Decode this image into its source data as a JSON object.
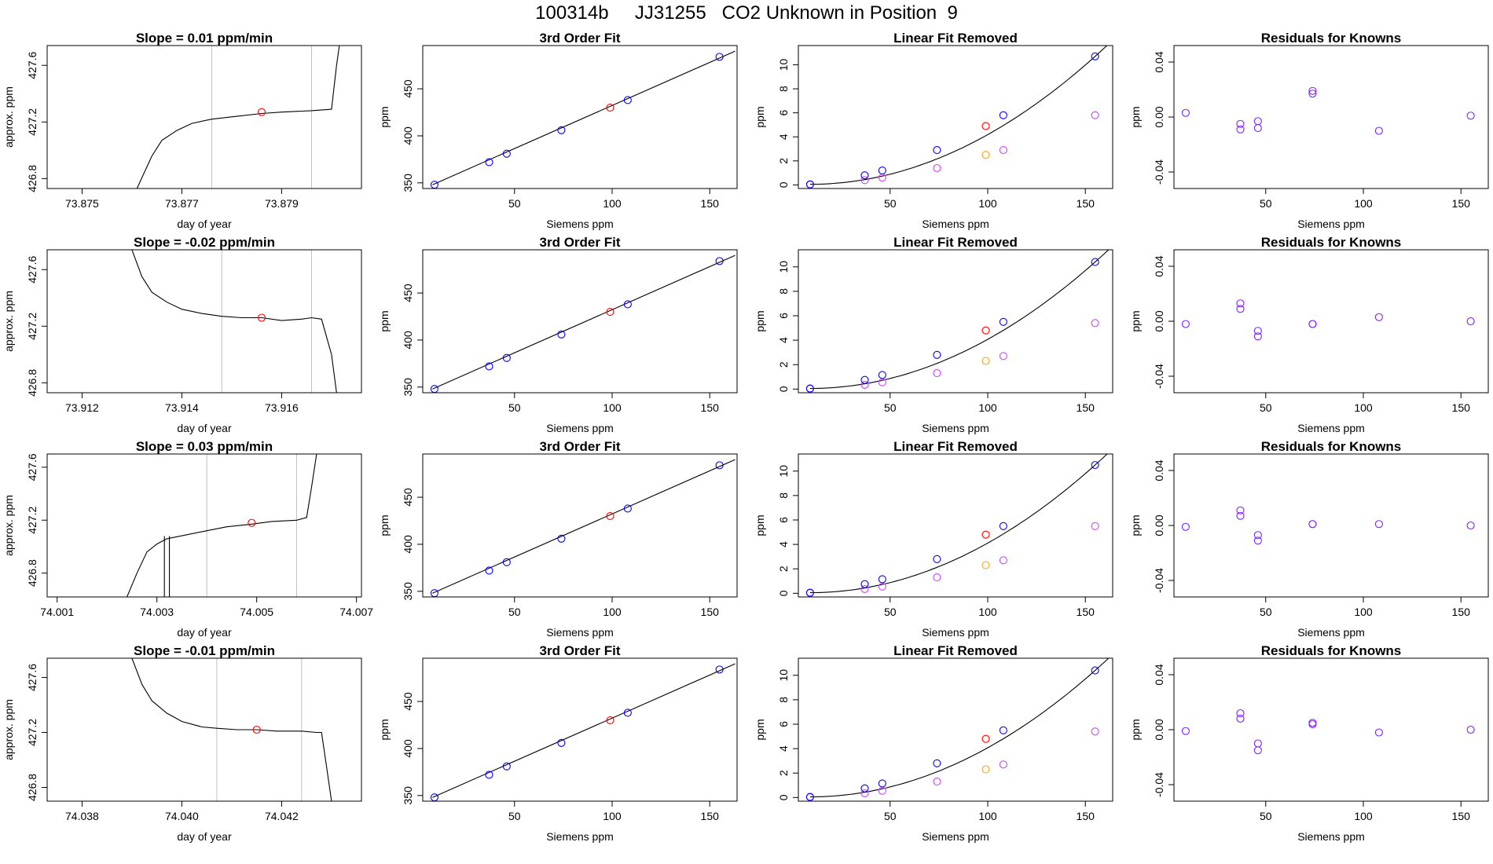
{
  "title": "100314b     JJ31255   CO2 Unknown in Position  9",
  "colors": {
    "trace": "#000000",
    "cursor": "#c0c0c0",
    "unknown": "#ff0000",
    "standards": "#0000ff",
    "raw_points": "#cc44ff",
    "raw_unknown": "#ffa500",
    "residuals": "#7f22ff"
  },
  "chart_data": [
    {
      "type": "line",
      "panel": "time-trace",
      "title": "Slope =  0.01  ppm/min",
      "xlabel": "day of year",
      "ylabel": "approx. ppm",
      "xlim": [
        73.8743,
        73.8806
      ],
      "ylim": [
        426.73,
        427.74
      ],
      "xticks": [
        "73.875",
        "73.877",
        "73.879"
      ],
      "yticks": [
        "426.8",
        "427.2",
        "427.6"
      ],
      "cursors": [
        73.8776,
        73.8796
      ],
      "marker": {
        "x": 73.8786,
        "y": 427.27
      },
      "series": [
        {
          "x": [
            73.8761,
            73.8764,
            73.8766,
            73.8769,
            73.8772,
            73.8776,
            73.8781,
            73.8786,
            73.879,
            73.8796,
            73.88,
            73.8801,
            73.8803
          ],
          "y": [
            426.73,
            426.96,
            427.07,
            427.14,
            427.19,
            427.22,
            427.24,
            427.26,
            427.27,
            427.28,
            427.29,
            427.6,
            428.1
          ]
        }
      ]
    },
    {
      "type": "scatter",
      "panel": "third-order-fit",
      "title": "3rd Order Fit",
      "xlabel": "Siemens ppm",
      "ylabel": "ppm",
      "xlim": [
        3,
        164
      ],
      "ylim": [
        344,
        496
      ],
      "xticks": [
        "50",
        "100",
        "150"
      ],
      "yticks": [
        "350",
        "400",
        "450"
      ],
      "fit_line": {
        "x": [
          8,
          163
        ],
        "y": [
          348,
          490
        ]
      },
      "standards": {
        "x": [
          9,
          37,
          46,
          74,
          108,
          155
        ],
        "y": [
          348,
          372,
          381,
          406,
          438,
          484
        ]
      },
      "unknown": {
        "x": [
          99
        ],
        "y": [
          430
        ]
      }
    },
    {
      "type": "scatter",
      "panel": "linear-fit-removed",
      "title": "Linear Fit Removed",
      "xlabel": "Siemens ppm",
      "ylabel": "ppm",
      "xlim": [
        3,
        164
      ],
      "ylim": [
        -0.3,
        11.6
      ],
      "xticks": [
        "50",
        "100",
        "150"
      ],
      "yticks": [
        "0",
        "2",
        "4",
        "6",
        "8",
        "10"
      ],
      "standards": {
        "x": [
          9,
          37,
          46,
          74,
          108,
          155
        ],
        "y": [
          0.05,
          0.8,
          1.2,
          2.9,
          5.8,
          10.7
        ]
      },
      "raw": {
        "x": [
          9,
          37,
          46,
          74,
          108,
          155
        ],
        "y": [
          0.02,
          0.4,
          0.6,
          1.4,
          2.9,
          5.8
        ]
      },
      "unknown": {
        "x": [
          99
        ],
        "y": [
          4.9
        ]
      },
      "raw_unknown": {
        "x": [
          99
        ],
        "y": [
          2.5
        ]
      }
    },
    {
      "type": "scatter",
      "panel": "residuals",
      "title": "Residuals for Knowns",
      "xlabel": "Siemens ppm",
      "ylabel": "ppm",
      "xlim": [
        3,
        164
      ],
      "ylim": [
        -0.052,
        0.052
      ],
      "xticks": [
        "50",
        "100",
        "150"
      ],
      "yticks": [
        "-0.04",
        "0.00",
        "0.04"
      ],
      "points": {
        "x": [
          9,
          37,
          37,
          46,
          46,
          74,
          74,
          108,
          155
        ],
        "y": [
          0.003,
          -0.005,
          -0.009,
          -0.003,
          -0.008,
          0.019,
          0.017,
          -0.01,
          0.001
        ]
      }
    },
    {
      "type": "line",
      "panel": "time-trace",
      "title": "Slope =  -0.02  ppm/min",
      "xlabel": "day of year",
      "ylabel": "approx. ppm",
      "xlim": [
        73.9113,
        73.9176
      ],
      "ylim": [
        426.73,
        427.74
      ],
      "xticks": [
        "73.912",
        "73.914",
        "73.916"
      ],
      "yticks": [
        "426.8",
        "427.2",
        "427.6"
      ],
      "cursors": [
        73.9148,
        73.9166
      ],
      "marker": {
        "x": 73.9156,
        "y": 427.26
      },
      "series": [
        {
          "x": [
            73.913,
            73.9132,
            73.9134,
            73.9137,
            73.914,
            73.9144,
            73.9148,
            73.9152,
            73.9156,
            73.916,
            73.9164,
            73.9166,
            73.9168,
            73.917,
            73.9171
          ],
          "y": [
            427.74,
            427.55,
            427.44,
            427.37,
            427.32,
            427.29,
            427.27,
            427.26,
            427.26,
            427.24,
            427.25,
            427.26,
            427.25,
            427.0,
            426.73
          ]
        }
      ]
    },
    {
      "type": "scatter",
      "panel": "third-order-fit",
      "title": "3rd Order Fit",
      "xlabel": "Siemens ppm",
      "ylabel": "ppm",
      "xlim": [
        3,
        164
      ],
      "ylim": [
        344,
        496
      ],
      "xticks": [
        "50",
        "100",
        "150"
      ],
      "yticks": [
        "350",
        "400",
        "450"
      ],
      "fit_line": {
        "x": [
          8,
          163
        ],
        "y": [
          348,
          490
        ]
      },
      "standards": {
        "x": [
          9,
          37,
          46,
          74,
          108,
          155
        ],
        "y": [
          348,
          372,
          381,
          406,
          438,
          484
        ]
      },
      "unknown": {
        "x": [
          99
        ],
        "y": [
          430
        ]
      }
    },
    {
      "type": "scatter",
      "panel": "linear-fit-removed",
      "title": "Linear Fit Removed",
      "xlabel": "Siemens ppm",
      "ylabel": "ppm",
      "xlim": [
        3,
        164
      ],
      "ylim": [
        -0.3,
        11.4
      ],
      "xticks": [
        "50",
        "100",
        "150"
      ],
      "yticks": [
        "0",
        "2",
        "4",
        "6",
        "8",
        "10"
      ],
      "standards": {
        "x": [
          9,
          37,
          46,
          74,
          108,
          155
        ],
        "y": [
          0.05,
          0.75,
          1.15,
          2.8,
          5.5,
          10.4
        ]
      },
      "raw": {
        "x": [
          9,
          37,
          46,
          74,
          108,
          155
        ],
        "y": [
          0.02,
          0.35,
          0.55,
          1.3,
          2.7,
          5.4
        ]
      },
      "unknown": {
        "x": [
          99
        ],
        "y": [
          4.8
        ]
      },
      "raw_unknown": {
        "x": [
          99
        ],
        "y": [
          2.3
        ]
      }
    },
    {
      "type": "scatter",
      "panel": "residuals",
      "title": "Residuals for Knowns",
      "xlabel": "Siemens ppm",
      "ylabel": "ppm",
      "xlim": [
        3,
        164
      ],
      "ylim": [
        -0.052,
        0.052
      ],
      "xticks": [
        "50",
        "100",
        "150"
      ],
      "yticks": [
        "-0.04",
        "0.00",
        "0.04"
      ],
      "points": {
        "x": [
          9,
          37,
          37,
          46,
          46,
          74,
          74,
          108,
          155
        ],
        "y": [
          -0.002,
          0.013,
          0.009,
          -0.007,
          -0.011,
          -0.002,
          -0.002,
          0.003,
          0.0
        ]
      }
    },
    {
      "type": "line",
      "panel": "time-trace",
      "title": "Slope =  0.03  ppm/min",
      "xlabel": "day of year",
      "ylabel": "approx. ppm",
      "xlim": [
        74.0008,
        74.0071
      ],
      "ylim": [
        426.62,
        427.7
      ],
      "xticks": [
        "74.001",
        "74.003",
        "74.005",
        "74.007"
      ],
      "yticks": [
        "426.8",
        "427.2",
        "427.6"
      ],
      "cursors": [
        74.004,
        74.0058
      ],
      "marker": {
        "x": 74.0049,
        "y": 427.18
      },
      "series": [
        {
          "x": [
            74.0024,
            74.0026,
            74.0028,
            74.003,
            74.0032,
            74.0036,
            74.004,
            74.0044,
            74.0049,
            74.0053,
            74.0058,
            74.006,
            74.0061,
            74.0062
          ],
          "y": [
            426.62,
            426.8,
            426.96,
            427.02,
            427.06,
            427.09,
            427.12,
            427.15,
            427.17,
            427.19,
            427.2,
            427.22,
            427.45,
            427.7
          ]
        }
      ],
      "spikes": [
        74.00315,
        74.00325
      ]
    },
    {
      "type": "scatter",
      "panel": "third-order-fit",
      "title": "3rd Order Fit",
      "xlabel": "Siemens ppm",
      "ylabel": "ppm",
      "xlim": [
        3,
        164
      ],
      "ylim": [
        344,
        496
      ],
      "xticks": [
        "50",
        "100",
        "150"
      ],
      "yticks": [
        "350",
        "400",
        "450"
      ],
      "fit_line": {
        "x": [
          8,
          163
        ],
        "y": [
          348,
          490
        ]
      },
      "standards": {
        "x": [
          9,
          37,
          46,
          74,
          108,
          155
        ],
        "y": [
          348,
          372,
          381,
          406,
          438,
          484
        ]
      },
      "unknown": {
        "x": [
          99
        ],
        "y": [
          430
        ]
      }
    },
    {
      "type": "scatter",
      "panel": "linear-fit-removed",
      "title": "Linear Fit Removed",
      "xlabel": "Siemens ppm",
      "ylabel": "ppm",
      "xlim": [
        3,
        164
      ],
      "ylim": [
        -0.3,
        11.4
      ],
      "xticks": [
        "50",
        "100",
        "150"
      ],
      "yticks": [
        "0",
        "2",
        "4",
        "6",
        "8",
        "10"
      ],
      "standards": {
        "x": [
          9,
          37,
          46,
          74,
          108,
          155
        ],
        "y": [
          0.05,
          0.75,
          1.15,
          2.8,
          5.5,
          10.5
        ]
      },
      "raw": {
        "x": [
          9,
          37,
          46,
          74,
          108,
          155
        ],
        "y": [
          0.02,
          0.35,
          0.55,
          1.3,
          2.7,
          5.5
        ]
      },
      "unknown": {
        "x": [
          99
        ],
        "y": [
          4.8
        ]
      },
      "raw_unknown": {
        "x": [
          99
        ],
        "y": [
          2.3
        ]
      }
    },
    {
      "type": "scatter",
      "panel": "residuals",
      "title": "Residuals for Knowns",
      "xlabel": "Siemens ppm",
      "ylabel": "ppm",
      "xlim": [
        3,
        164
      ],
      "ylim": [
        -0.052,
        0.052
      ],
      "xticks": [
        "50",
        "100",
        "150"
      ],
      "yticks": [
        "-0.04",
        "0.00",
        "0.04"
      ],
      "points": {
        "x": [
          9,
          37,
          37,
          46,
          46,
          74,
          74,
          108,
          155
        ],
        "y": [
          -0.001,
          0.011,
          0.007,
          -0.007,
          -0.011,
          0.001,
          0.001,
          0.001,
          0.0
        ]
      }
    },
    {
      "type": "line",
      "panel": "time-trace",
      "title": "Slope =  -0.01  ppm/min",
      "xlabel": "day of year",
      "ylabel": "approx. ppm",
      "xlim": [
        74.0373,
        74.0436
      ],
      "ylim": [
        426.7,
        427.74
      ],
      "xticks": [
        "74.038",
        "74.040",
        "74.042"
      ],
      "yticks": [
        "426.8",
        "427.2",
        "427.6"
      ],
      "cursors": [
        74.0407,
        74.0424
      ],
      "marker": {
        "x": 74.0415,
        "y": 427.22
      },
      "series": [
        {
          "x": [
            74.039,
            74.0392,
            74.0394,
            74.0397,
            74.04,
            74.0404,
            74.0407,
            74.0411,
            74.0415,
            74.0419,
            74.0424,
            74.0427,
            74.0428,
            74.0429,
            74.043
          ],
          "y": [
            427.74,
            427.55,
            427.43,
            427.34,
            427.28,
            427.24,
            427.23,
            427.22,
            427.22,
            427.21,
            427.21,
            427.2,
            427.2,
            426.95,
            426.7
          ]
        }
      ]
    },
    {
      "type": "scatter",
      "panel": "third-order-fit",
      "title": "3rd Order Fit",
      "xlabel": "Siemens ppm",
      "ylabel": "ppm",
      "xlim": [
        3,
        164
      ],
      "ylim": [
        344,
        496
      ],
      "xticks": [
        "50",
        "100",
        "150"
      ],
      "yticks": [
        "350",
        "400",
        "450"
      ],
      "fit_line": {
        "x": [
          8,
          163
        ],
        "y": [
          348,
          490
        ]
      },
      "standards": {
        "x": [
          9,
          37,
          46,
          74,
          108,
          155
        ],
        "y": [
          348,
          372,
          381,
          406,
          438,
          484
        ]
      },
      "unknown": {
        "x": [
          99
        ],
        "y": [
          430
        ]
      }
    },
    {
      "type": "scatter",
      "panel": "linear-fit-removed",
      "title": "Linear Fit Removed",
      "xlabel": "Siemens ppm",
      "ylabel": "ppm",
      "xlim": [
        3,
        164
      ],
      "ylim": [
        -0.3,
        11.4
      ],
      "xticks": [
        "50",
        "100",
        "150"
      ],
      "yticks": [
        "0",
        "2",
        "4",
        "6",
        "8",
        "10"
      ],
      "standards": {
        "x": [
          9,
          37,
          46,
          74,
          108,
          155
        ],
        "y": [
          0.05,
          0.75,
          1.15,
          2.8,
          5.5,
          10.4
        ]
      },
      "raw": {
        "x": [
          9,
          37,
          46,
          74,
          108,
          155
        ],
        "y": [
          0.02,
          0.35,
          0.55,
          1.3,
          2.7,
          5.4
        ]
      },
      "unknown": {
        "x": [
          99
        ],
        "y": [
          4.8
        ]
      },
      "raw_unknown": {
        "x": [
          99
        ],
        "y": [
          2.3
        ]
      }
    },
    {
      "type": "scatter",
      "panel": "residuals",
      "title": "Residuals for Knowns",
      "xlabel": "Siemens ppm",
      "ylabel": "ppm",
      "xlim": [
        3,
        164
      ],
      "ylim": [
        -0.052,
        0.052
      ],
      "xticks": [
        "50",
        "100",
        "150"
      ],
      "yticks": [
        "-0.04",
        "0.00",
        "0.04"
      ],
      "points": {
        "x": [
          9,
          37,
          37,
          46,
          46,
          74,
          74,
          108,
          155
        ],
        "y": [
          -0.001,
          0.012,
          0.008,
          -0.01,
          -0.015,
          0.005,
          0.004,
          -0.002,
          0.0
        ]
      }
    }
  ]
}
